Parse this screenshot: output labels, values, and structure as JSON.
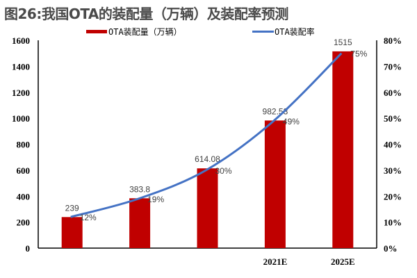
{
  "title": "图26:我国OTA的装配量（万辆）及装配率预测",
  "chart_data": {
    "type": "bar+line",
    "title": "图26:我国OTA的装配量（万辆）及装配率预测",
    "categories": [
      "",
      "",
      "",
      "2021E",
      "2025E"
    ],
    "series": [
      {
        "name": "OTA装配量（万辆）",
        "type": "bar",
        "axis": "left",
        "color": "#C00000",
        "values": [
          239,
          383.8,
          614.08,
          982.53,
          1515
        ],
        "labels": [
          "239",
          "383.8",
          "614.08",
          "982.53",
          "1515"
        ]
      },
      {
        "name": "OTA装配率",
        "type": "line",
        "axis": "right",
        "color": "#4472C4",
        "values": [
          12,
          19,
          30,
          49,
          75
        ],
        "labels": [
          "12%",
          "19%",
          "30%",
          "49%",
          "75%"
        ]
      }
    ],
    "y_left": {
      "range": [
        0,
        1600
      ],
      "ticks": [
        "0",
        "200",
        "400",
        "600",
        "800",
        "1000",
        "1200",
        "1400",
        "1600"
      ]
    },
    "y_right": {
      "range": [
        0,
        80
      ],
      "ticks": [
        "0%",
        "10%",
        "20%",
        "30%",
        "40%",
        "50%",
        "60%",
        "70%",
        "80%"
      ]
    },
    "legend": "top",
    "grid": false
  }
}
